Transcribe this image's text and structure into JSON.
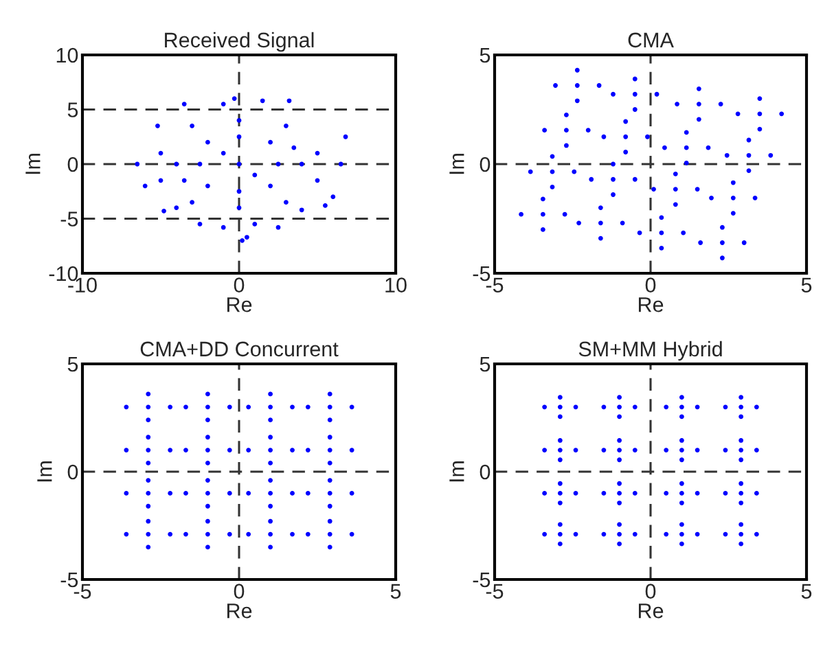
{
  "chart_data": [
    {
      "type": "scatter",
      "title": "Received Signal",
      "xlabel": "Re",
      "ylabel": "Im",
      "xlim": [
        -10,
        10
      ],
      "ylim": [
        -10,
        10
      ],
      "xticks": [
        -10,
        0,
        10
      ],
      "yticks": [
        -10,
        -5,
        0,
        5,
        10
      ],
      "grid": true,
      "marker": "circle",
      "series": [
        {
          "color": "#0000ff",
          "x": [
            0,
            -2,
            2,
            -2,
            2,
            -4,
            4,
            0,
            0,
            -3,
            3,
            -3,
            3,
            -5,
            5,
            -5,
            5,
            -6.5,
            6.5,
            -6,
            6,
            -1,
            1.5,
            -1,
            1,
            -3.5,
            3.2,
            -4,
            4,
            0.5,
            -0.3,
            6.8,
            -5.2,
            -4.8,
            5.5,
            0.2,
            -2.5,
            2.5,
            -1,
            1,
            -2.5,
            2.5,
            0,
            0,
            3.5,
            -3.5
          ],
          "values": [
            0,
            2,
            2,
            -2,
            -2,
            0,
            0,
            4,
            -4,
            3.5,
            3.5,
            -3.5,
            -3.5,
            1,
            1,
            -1.5,
            -1.5,
            0,
            0,
            -2,
            -3,
            5.5,
            5.8,
            -5.8,
            -5.5,
            5.5,
            5.8,
            -4,
            -4.2,
            -6.7,
            6,
            2.5,
            3.5,
            -4.3,
            -3.8,
            -7,
            -5.5,
            -5.8,
            1,
            -1,
            0,
            0,
            2.5,
            -2.5,
            1.5,
            -1.5
          ]
        }
      ]
    },
    {
      "type": "scatter",
      "title": "CMA",
      "xlabel": "Re",
      "ylabel": "Im",
      "xlim": [
        -5,
        5
      ],
      "ylim": [
        -5,
        5
      ],
      "xticks": [
        -5,
        0,
        5
      ],
      "yticks": [
        -5,
        0,
        5
      ],
      "grid": true,
      "marker": "circle",
      "series": [
        {
          "color": "#0000ff",
          "x": [
            -2.35,
            -3.05,
            -1.65,
            -2.35,
            -2.35,
            -0.5,
            -1.2,
            0.2,
            -0.5,
            -0.5,
            1.55,
            0.85,
            2.25,
            1.55,
            1.55,
            3.5,
            2.8,
            4.2,
            3.5,
            3.5,
            -2.7,
            -3.4,
            -2.0,
            -2.7,
            -2.7,
            -0.8,
            -1.5,
            -0.1,
            -0.8,
            -0.8,
            1.15,
            0.45,
            1.85,
            1.15,
            1.15,
            3.15,
            2.45,
            3.85,
            3.15,
            3.15,
            -3.15,
            -3.85,
            -2.45,
            -3.15,
            -3.15,
            -1.2,
            -1.9,
            -0.5,
            -1.2,
            -1.2,
            0.8,
            0.1,
            1.5,
            0.8,
            0.8,
            2.65,
            1.95,
            3.35,
            2.65,
            2.65,
            -3.45,
            -4.15,
            -2.75,
            -3.45,
            -3.45,
            -1.6,
            -2.3,
            -0.9,
            -1.6,
            -1.6,
            0.35,
            -0.35,
            1.05,
            0.35,
            0.35,
            2.3,
            1.6,
            3.0,
            2.3,
            2.3
          ],
          "values": [
            3.6,
            3.6,
            3.6,
            2.9,
            4.3,
            3.2,
            3.2,
            3.2,
            2.5,
            3.9,
            2.75,
            2.75,
            2.75,
            2.05,
            3.45,
            2.3,
            2.3,
            2.3,
            1.6,
            3.0,
            1.55,
            1.55,
            1.55,
            0.85,
            2.25,
            1.25,
            1.25,
            1.25,
            0.55,
            1.95,
            0.75,
            0.75,
            0.75,
            0.05,
            1.45,
            0.4,
            0.4,
            0.4,
            -0.3,
            1.1,
            -0.35,
            -0.35,
            -0.35,
            -1.05,
            0.35,
            -0.7,
            -0.7,
            -0.7,
            -1.4,
            0.0,
            -1.15,
            -1.15,
            -1.15,
            -1.85,
            -0.45,
            -1.55,
            -1.55,
            -1.55,
            -2.25,
            -0.85,
            -2.3,
            -2.3,
            -2.3,
            -3.0,
            -1.6,
            -2.7,
            -2.7,
            -2.7,
            -3.4,
            -2.0,
            -3.15,
            -3.15,
            -3.15,
            -3.85,
            -2.45,
            -3.6,
            -3.6,
            -3.6,
            -4.3,
            -2.9
          ]
        }
      ]
    },
    {
      "type": "scatter",
      "title": "CMA+DD Concurrent",
      "xlabel": "Re",
      "ylabel": "Im",
      "xlim": [
        -5,
        5
      ],
      "ylim": [
        -5,
        5
      ],
      "xticks": [
        -5,
        0,
        5
      ],
      "yticks": [
        -5,
        0,
        5
      ],
      "grid": true,
      "marker": "circle",
      "series": [
        {
          "color": "#0000ff",
          "x": [
            -2.9,
            -3.6,
            -2.2,
            -2.9,
            -2.9,
            -1,
            -1.7,
            -0.3,
            -1,
            -1,
            1,
            0.3,
            1.7,
            1,
            1,
            2.9,
            2.2,
            3.6,
            2.9,
            2.9,
            -2.9,
            -3.6,
            -2.2,
            -2.9,
            -2.9,
            -1,
            -1.7,
            -0.3,
            -1,
            -1,
            1,
            0.3,
            1.7,
            1,
            1,
            2.9,
            2.2,
            3.6,
            2.9,
            2.9,
            -2.9,
            -3.6,
            -2.2,
            -2.9,
            -2.9,
            -1,
            -1.7,
            -0.3,
            -1,
            -1,
            1,
            0.3,
            1.7,
            1,
            1,
            2.9,
            2.2,
            3.6,
            2.9,
            2.9,
            -2.9,
            -3.6,
            -2.2,
            -2.9,
            -2.9,
            -1,
            -1.7,
            -0.3,
            -1,
            -1,
            1,
            0.3,
            1.7,
            1,
            1,
            2.9,
            2.2,
            3.6,
            2.9,
            2.9
          ],
          "values": [
            3,
            3,
            3,
            2.4,
            3.6,
            3,
            3,
            3,
            2.4,
            3.6,
            3,
            3,
            3,
            2.4,
            3.6,
            3,
            3,
            3,
            2.4,
            3.6,
            1,
            1,
            1,
            0.4,
            1.6,
            1,
            1,
            1,
            0.4,
            1.6,
            1,
            1,
            1,
            0.4,
            1.6,
            1,
            1,
            1,
            0.4,
            1.6,
            -1,
            -1,
            -1,
            -1.6,
            -0.4,
            -1,
            -1,
            -1,
            -1.6,
            -0.4,
            -1,
            -1,
            -1,
            -1.6,
            -0.4,
            -1,
            -1,
            -1,
            -1.6,
            -0.4,
            -2.9,
            -2.9,
            -2.9,
            -3.5,
            -2.3,
            -2.9,
            -2.9,
            -2.9,
            -3.5,
            -2.3,
            -2.9,
            -2.9,
            -2.9,
            -3.5,
            -2.3,
            -2.9,
            -2.9,
            -2.9,
            -3.5,
            -2.3
          ]
        }
      ]
    },
    {
      "type": "scatter",
      "title": "SM+MM Hybrid",
      "xlabel": "Re",
      "ylabel": "Im",
      "xlim": [
        -5,
        5
      ],
      "ylim": [
        -5,
        5
      ],
      "xticks": [
        -5,
        0,
        5
      ],
      "yticks": [
        -5,
        0,
        5
      ],
      "grid": true,
      "marker": "circle",
      "series": [
        {
          "color": "#0000ff",
          "x": [
            -2.9,
            -3.4,
            -2.4,
            -2.9,
            -2.9,
            -1,
            -1.5,
            -0.5,
            -1,
            -1,
            1,
            0.5,
            1.5,
            1,
            1,
            2.9,
            2.4,
            3.4,
            2.9,
            2.9,
            -2.9,
            -3.4,
            -2.4,
            -2.9,
            -2.9,
            -1,
            -1.5,
            -0.5,
            -1,
            -1,
            1,
            0.5,
            1.5,
            1,
            1,
            2.9,
            2.4,
            3.4,
            2.9,
            2.9,
            -2.9,
            -3.4,
            -2.4,
            -2.9,
            -2.9,
            -1,
            -1.5,
            -0.5,
            -1,
            -1,
            1,
            0.5,
            1.5,
            1,
            1,
            2.9,
            2.4,
            3.4,
            2.9,
            2.9,
            -2.9,
            -3.4,
            -2.4,
            -2.9,
            -2.9,
            -1,
            -1.5,
            -0.5,
            -1,
            -1,
            1,
            0.5,
            1.5,
            1,
            1,
            2.9,
            2.4,
            3.4,
            2.9,
            2.9
          ],
          "values": [
            3,
            3,
            3,
            2.55,
            3.45,
            3,
            3,
            3,
            2.55,
            3.45,
            3,
            3,
            3,
            2.55,
            3.45,
            3,
            3,
            3,
            2.55,
            3.45,
            1,
            1,
            1,
            0.55,
            1.45,
            1,
            1,
            1,
            0.55,
            1.45,
            1,
            1,
            1,
            0.55,
            1.45,
            1,
            1,
            1,
            0.55,
            1.45,
            -1,
            -1,
            -1,
            -1.45,
            -0.55,
            -1,
            -1,
            -1,
            -1.45,
            -0.55,
            -1,
            -1,
            -1,
            -1.45,
            -0.55,
            -1,
            -1,
            -1,
            -1.45,
            -0.55,
            -2.9,
            -2.9,
            -2.9,
            -3.35,
            -2.45,
            -2.9,
            -2.9,
            -2.9,
            -3.35,
            -2.45,
            -2.9,
            -2.9,
            -2.9,
            -3.35,
            -2.45,
            -2.9,
            -2.9,
            -2.9,
            -3.35,
            -2.45
          ]
        }
      ]
    }
  ]
}
